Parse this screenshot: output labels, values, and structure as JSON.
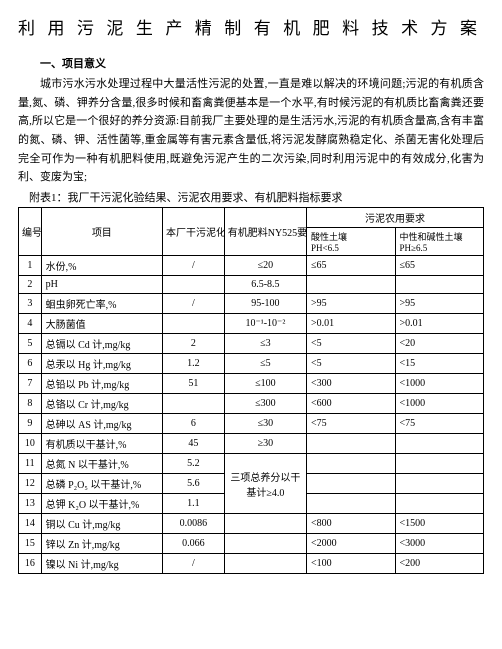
{
  "title": "利用污泥生产精制有机肥料技术方案",
  "section1_head": "一、项目意义",
  "para1": "城市污水污水处理过程中大量活性污泥的处置,一直是难以解决的环境问题;污泥的有机质含量,氮、磷、钾养分含量,很多时候和畜禽粪便基本是一个水平,有时候污泥的有机质比畜禽粪还要高,所以它是一个很好的养分资源:目前我厂主要处理的是生活污水,污泥的有机质含量高,含有丰富的氮、磷、钾、活性菌等,重金属等有害元素含量低,将污泥发酵腐熟稳定化、杀菌无害化处理后完全可作为一种有机肥料使用,既避免污泥产生的二次污染,同时利用污泥中的有效成分,化害为利、变废为宝;",
  "attach_label": "附表1：我厂干污泥化验结果、污泥农用要求、有机肥料指标要求",
  "headers": {
    "num": "编号",
    "item": "项目",
    "lab": "本厂干污泥化验结果",
    "ny": "有机肥料NY525要求",
    "agri": "污泥农用要求",
    "acidic": "酸性土壤",
    "acidic_ph": "PH<6.5",
    "alkaline": "中性和碱性土壤",
    "alkaline_ph": "PH≥6.5"
  },
  "merged_ny": "三项总养分以干基计≥4.0",
  "rows": [
    {
      "n": "1",
      "item": "水份,%",
      "lab": "/",
      "ny": "≤20",
      "ac": "≤65",
      "al": "≤65"
    },
    {
      "n": "2",
      "item": "pH",
      "lab": "",
      "ny": "6.5-8.5",
      "ac": "",
      "al": ""
    },
    {
      "n": "3",
      "item": "蛔虫卵死亡率,%",
      "lab": "/",
      "ny": "95-100",
      "ac": ">95",
      "al": ">95"
    },
    {
      "n": "4",
      "item": "大肠菌值",
      "lab": "",
      "ny": "10⁻¹-10⁻²",
      "ac": ">0.01",
      "al": ">0.01"
    },
    {
      "n": "5",
      "item": "总镉以 Cd 计,mg/kg",
      "lab": "2",
      "ny": "≤3",
      "ac": "<5",
      "al": "<20"
    },
    {
      "n": "6",
      "item": "总汞以 Hg 计,mg/kg",
      "lab": "1.2",
      "ny": "≤5",
      "ac": "<5",
      "al": "<15"
    },
    {
      "n": "7",
      "item": "总铅以 Pb 计,mg/kg",
      "lab": "51",
      "ny": "≤100",
      "ac": "<300",
      "al": "<1000"
    },
    {
      "n": "8",
      "item": "总铬以 Cr 计,mg/kg",
      "lab": "",
      "ny": "≤300",
      "ac": "<600",
      "al": "<1000"
    },
    {
      "n": "9",
      "item": "总砷以 AS 计,mg/kg",
      "lab": "6",
      "ny": "≤30",
      "ac": "<75",
      "al": "<75"
    },
    {
      "n": "10",
      "item": "有机质以干基计,%",
      "lab": "45",
      "ny": "≥30",
      "ac": "",
      "al": ""
    },
    {
      "n": "11",
      "item": "总氮 N 以干基计,%",
      "lab": "5.2",
      "ny": "",
      "ac": "",
      "al": ""
    },
    {
      "n": "12",
      "item": "总磷 P₂O₅ 以干基计,%",
      "lab": "5.6",
      "ny": "",
      "ac": "",
      "al": ""
    },
    {
      "n": "13",
      "item": "总钾 K₂O 以干基计,%",
      "lab": "1.1",
      "ny": "",
      "ac": "",
      "al": ""
    },
    {
      "n": "14",
      "item": "铜以 Cu 计,mg/kg",
      "lab": "0.0086",
      "ny": "",
      "ac": "<800",
      "al": "<1500"
    },
    {
      "n": "15",
      "item": "锌以 Zn 计,mg/kg",
      "lab": "0.066",
      "ny": "",
      "ac": "<2000",
      "al": "<3000"
    },
    {
      "n": "16",
      "item": "镍以 Ni 计,mg/kg",
      "lab": "/",
      "ny": "",
      "ac": "<100",
      "al": "<200"
    }
  ]
}
